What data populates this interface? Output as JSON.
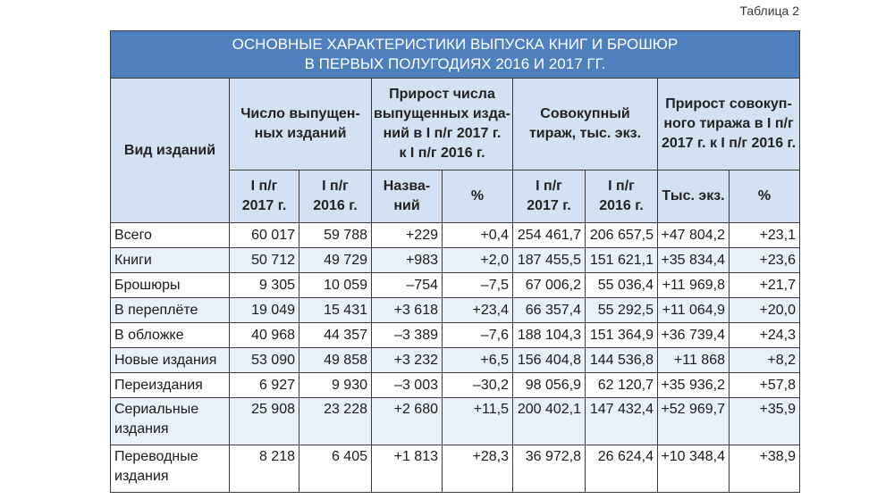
{
  "caption": "Таблица 2",
  "title": {
    "line1": "ОСНОВНЫЕ ХАРАКТЕРИСТИКИ ВЫПУСКА КНИГ И БРОШЮР",
    "line2": "В ПЕРВЫХ ПОЛУГОДИЯХ 2016 И 2017 ГГ."
  },
  "headers": {
    "kind": "Вид изданий",
    "count": [
      "Число выпущен-",
      "ных изданий"
    ],
    "growth_count": [
      "Прирост числа",
      "выпущенных изда-",
      "ний в I п/г 2017 г.",
      "к I п/г 2016 г."
    ],
    "circulation": [
      "Совокупный",
      "тираж, тыс. экз."
    ],
    "growth_circ": [
      "Прирост совокуп-",
      "ного тиража в I п/г",
      "2017 г. к I п/г 2016 г."
    ]
  },
  "subheaders": {
    "c2017": [
      "I п/г",
      "2017 г."
    ],
    "c2016": [
      "I п/г",
      "2016 г."
    ],
    "names": [
      "Назва-",
      "ний"
    ],
    "pct": "%",
    "t2017": [
      "I п/г",
      "2017 г."
    ],
    "t2016": [
      "I п/г",
      "2016 г."
    ],
    "thous": "Тыс. экз.",
    "pct2": "%"
  },
  "rows": [
    {
      "name": [
        "Всего"
      ],
      "c2017": "60 017",
      "c2016": "59 788",
      "names": "+229",
      "pct": "+0,4",
      "t2017": "254 461,7",
      "t2016": "206 657,5",
      "thous": "+47 804,2",
      "pct2": "+23,1"
    },
    {
      "name": [
        "Книги"
      ],
      "c2017": "50 712",
      "c2016": "49 729",
      "names": "+983",
      "pct": "+2,0",
      "t2017": "187 455,5",
      "t2016": "151 621,1",
      "thous": "+35 834,4",
      "pct2": "+23,6"
    },
    {
      "name": [
        "Брошюры"
      ],
      "c2017": "9 305",
      "c2016": "10 059",
      "names": "–754",
      "pct": "–7,5",
      "t2017": "67 006,2",
      "t2016": "55 036,4",
      "thous": "+11 969,8",
      "pct2": "+21,7"
    },
    {
      "name": [
        "В переплёте"
      ],
      "c2017": "19 049",
      "c2016": "15 431",
      "names": "+3 618",
      "pct": "+23,4",
      "t2017": "66 357,4",
      "t2016": "55 292,5",
      "thous": "+11 064,9",
      "pct2": "+20,0"
    },
    {
      "name": [
        "В обложке"
      ],
      "c2017": "40 968",
      "c2016": "44 357",
      "names": "–3 389",
      "pct": "–7,6",
      "t2017": "188 104,3",
      "t2016": "151 364,9",
      "thous": "+36 739,4",
      "pct2": "+24,3"
    },
    {
      "name": [
        "Новые издания"
      ],
      "c2017": "53 090",
      "c2016": "49 858",
      "names": "+3 232",
      "pct": "+6,5",
      "t2017": "156 404,8",
      "t2016": "144 536,8",
      "thous": "+11 868",
      "pct2": "+8,2"
    },
    {
      "name": [
        "Переиздания"
      ],
      "c2017": "6 927",
      "c2016": "9 930",
      "names": "–3 003",
      "pct": "–30,2",
      "t2017": "98 056,9",
      "t2016": "62 120,7",
      "thous": "+35 936,2",
      "pct2": "+57,8"
    },
    {
      "name": [
        "Сериальные",
        "издания"
      ],
      "c2017": "25 908",
      "c2016": "23 228",
      "names": "+2 680",
      "pct": "+11,5",
      "t2017": "200 402,1",
      "t2016": "147 432,4",
      "thous": "+52 969,7",
      "pct2": "+35,9"
    },
    {
      "name": [
        "Переводные",
        "издания"
      ],
      "c2017": "8 218",
      "c2016": "6 405",
      "names": "+1 813",
      "pct": "+28,3",
      "t2017": "36 972,8",
      "t2016": "26 624,4",
      "thous": "+10 348,4",
      "pct2": "+38,9"
    }
  ]
}
